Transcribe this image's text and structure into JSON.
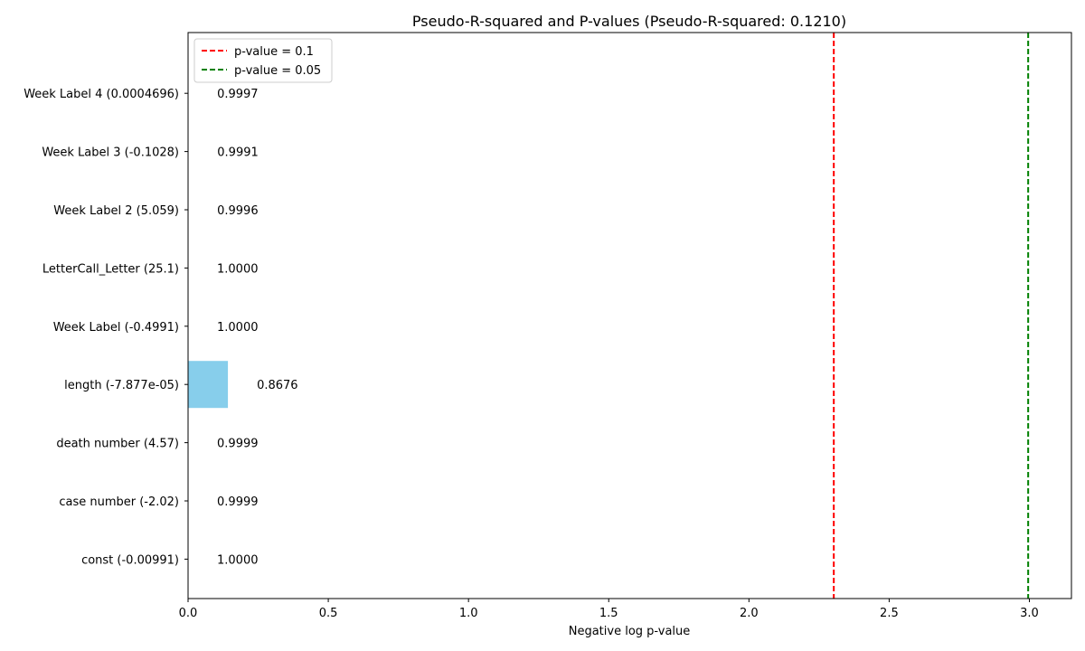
{
  "chart_data": {
    "type": "bar",
    "orientation": "horizontal",
    "title": "Pseudo-R-squared and P-values (Pseudo-R-squared: 0.1210)",
    "xlabel": "Negative log p-value",
    "ylabel": "",
    "xlim": [
      0,
      3.15
    ],
    "xticks": [
      "0.0",
      "0.5",
      "1.0",
      "1.5",
      "2.0",
      "2.5",
      "3.0"
    ],
    "xtick_values": [
      0,
      0.5,
      1.0,
      1.5,
      2.0,
      2.5,
      3.0
    ],
    "grid": false,
    "bar_color": "#87ceeb",
    "categories": [
      "const (-0.00991)",
      "case number (-2.02)",
      "death number (4.57)",
      "length (-7.877e-05)",
      "Week Label (-0.4991)",
      "LetterCall_Letter (25.1)",
      "Week Label 2 (5.059)",
      "Week Label 3 (-0.1028)",
      "Week Label 4 (0.0004696)"
    ],
    "values": [
      0.0,
      0.0001,
      0.0001,
      0.1421,
      0.0,
      0.0,
      0.0004,
      0.0009,
      0.0003
    ],
    "data_labels": [
      "1.0000",
      "0.9999",
      "0.9999",
      "0.8676",
      "1.0000",
      "1.0000",
      "0.9996",
      "0.9991",
      "0.9997"
    ],
    "reference_lines": [
      {
        "label": "p-value = 0.1",
        "x": 2.302585,
        "color": "#ff0000"
      },
      {
        "label": "p-value = 0.05",
        "x": 2.995732,
        "color": "#008000"
      }
    ],
    "legend_position": "upper-left"
  }
}
